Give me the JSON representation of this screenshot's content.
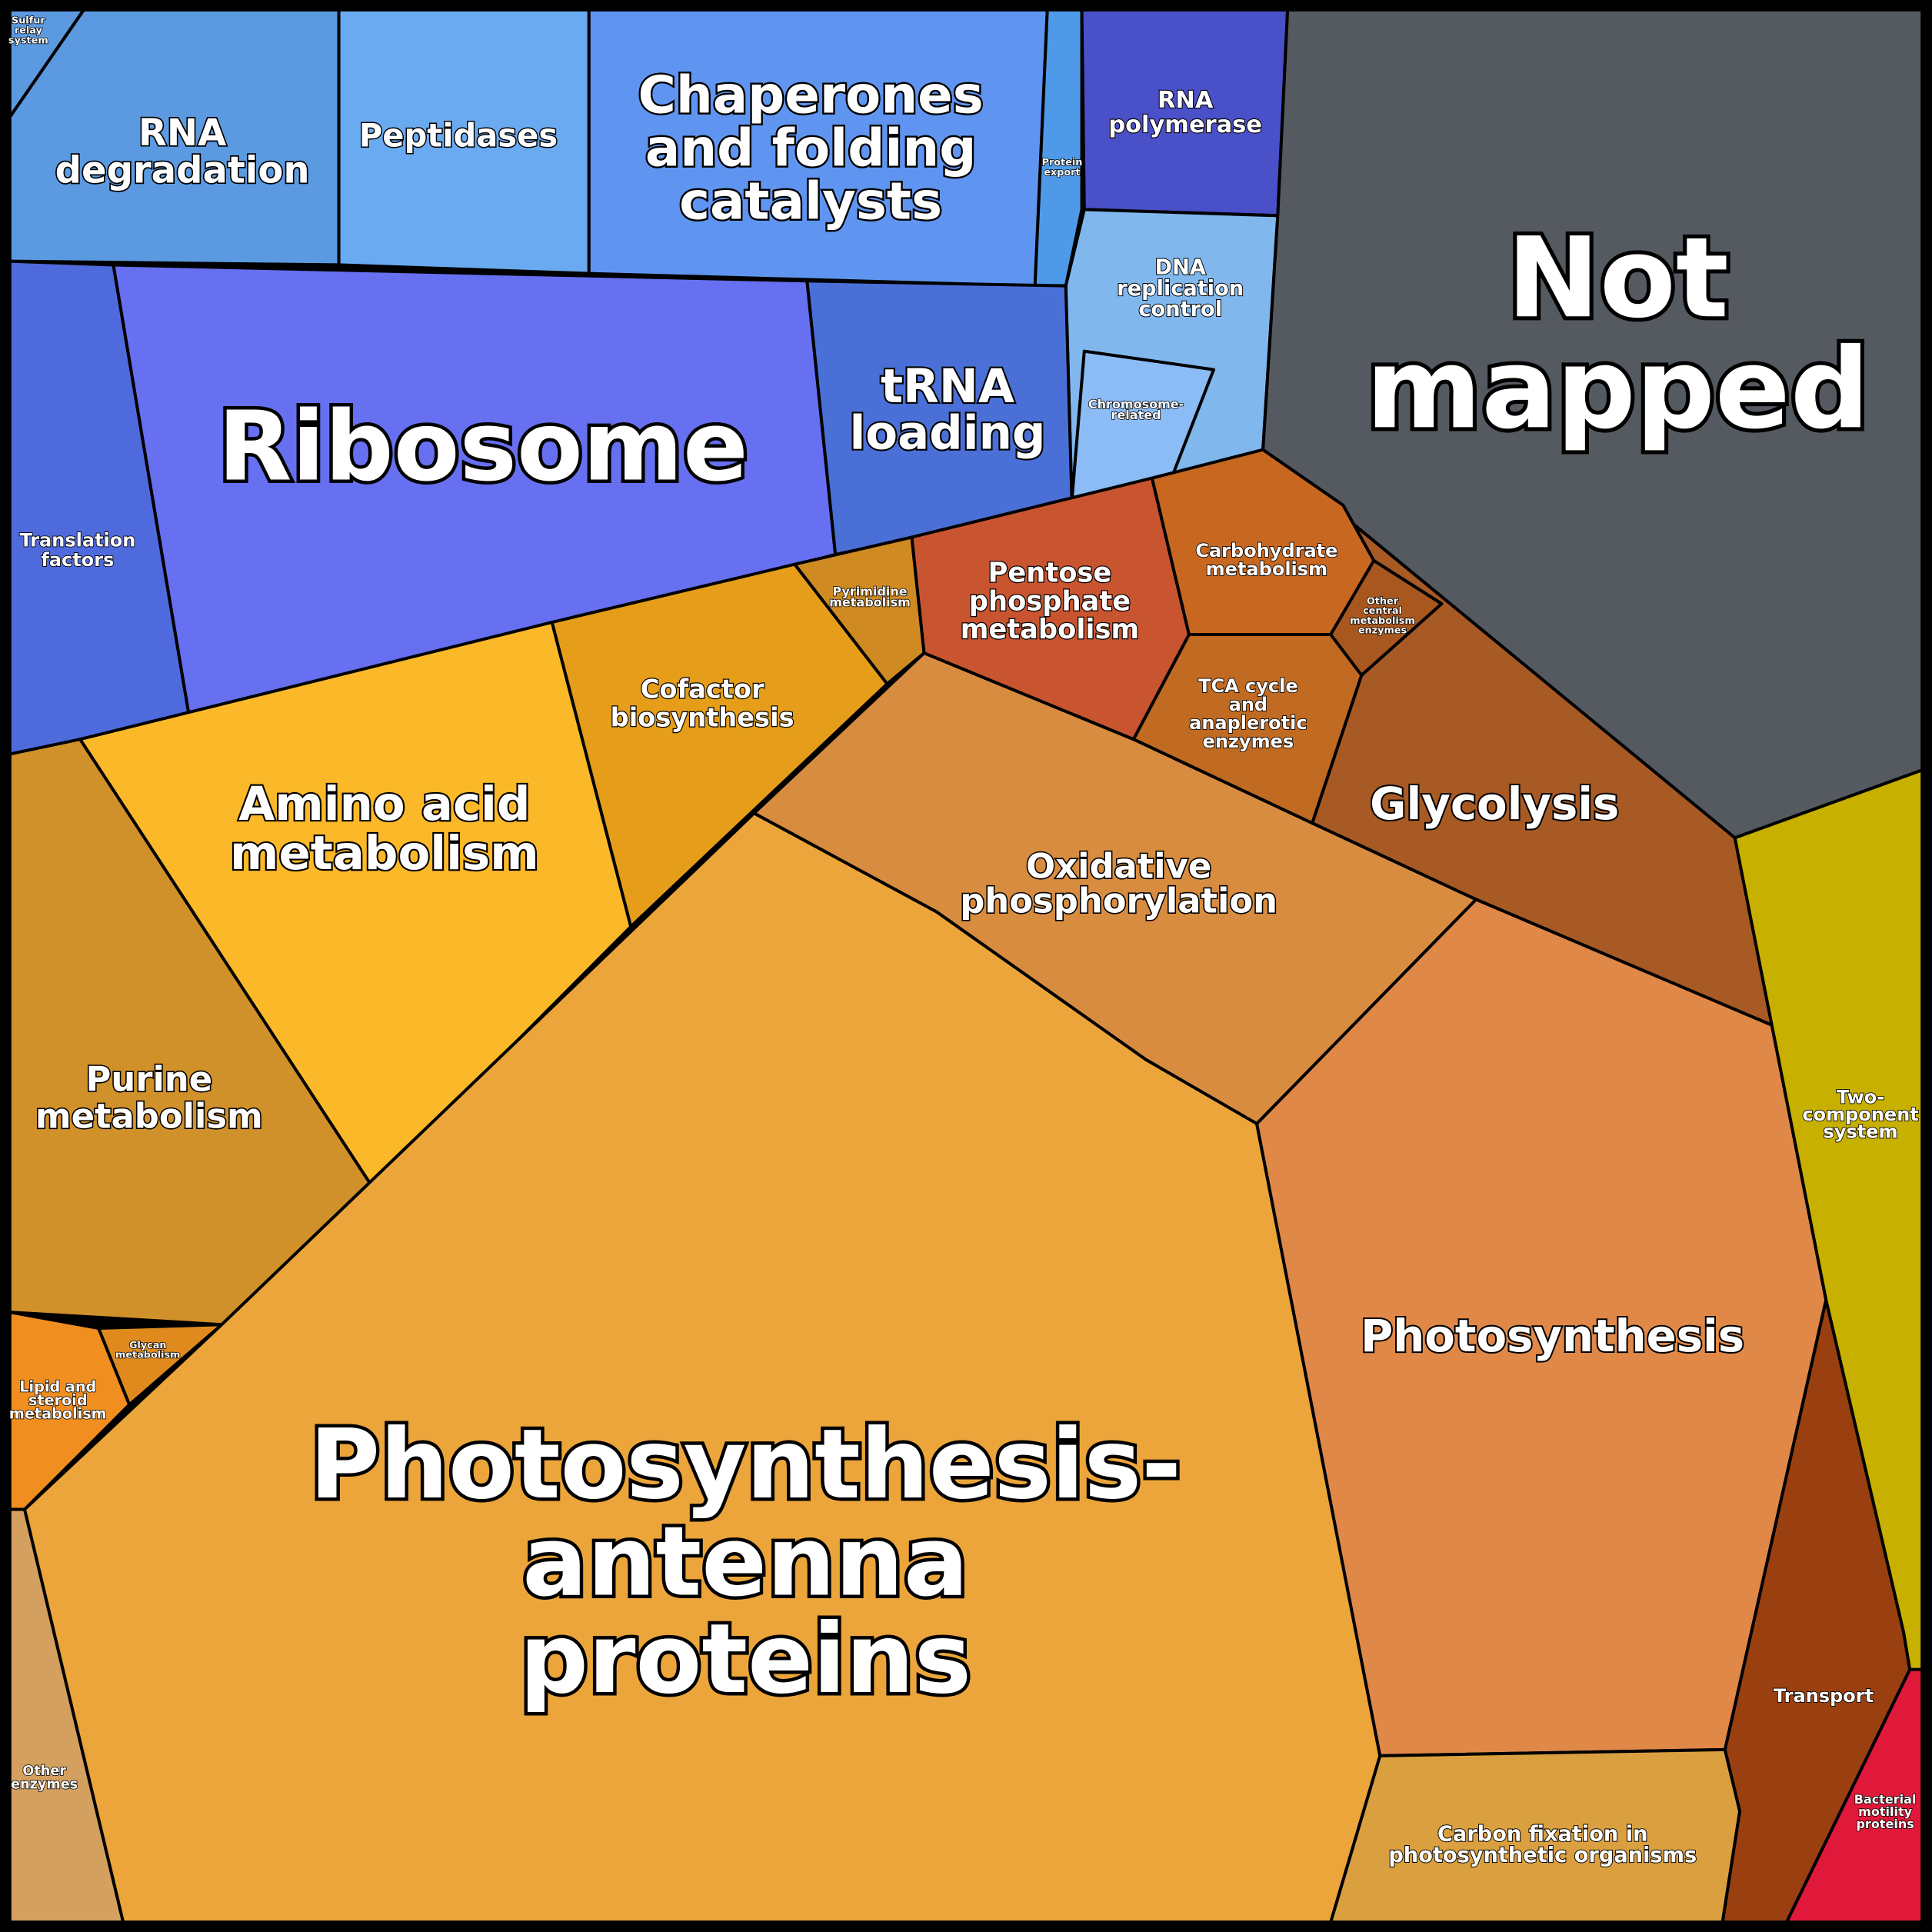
{
  "regions": [
    {
      "lines": [
        "Sulfur",
        "relay",
        "system"
      ]
    },
    {
      "lines": [
        "RNA",
        "degradation"
      ]
    },
    {
      "lines": [
        "Peptidases"
      ]
    },
    {
      "lines": [
        "Chaperones",
        "and folding",
        "catalysts"
      ]
    },
    {
      "lines": [
        "Protein",
        "export"
      ]
    },
    {
      "lines": [
        "RNA",
        "polymerase"
      ]
    },
    {
      "lines": [
        "DNA",
        "replication",
        "control"
      ]
    },
    {
      "lines": [
        "Chromosome-",
        "related"
      ]
    },
    {
      "lines": [
        "Not",
        "mapped"
      ]
    },
    {
      "lines": [
        "Translation",
        "factors"
      ]
    },
    {
      "lines": [
        "Ribosome"
      ]
    },
    {
      "lines": [
        "tRNA",
        "loading"
      ]
    },
    {
      "lines": [
        "Pyrimidine",
        "metabolism"
      ]
    },
    {
      "lines": [
        "Pentose",
        "phosphate",
        "metabolism"
      ]
    },
    {
      "lines": [
        "Carbohydrate",
        "metabolism"
      ]
    },
    {
      "lines": [
        "Other",
        "central",
        "metabolism",
        "enzymes"
      ]
    },
    {
      "lines": [
        "TCA cycle",
        "and",
        "anaplerotic",
        "enzymes"
      ]
    },
    {
      "lines": [
        "Glycolysis"
      ]
    },
    {
      "lines": [
        "Cofactor",
        "biosynthesis"
      ]
    },
    {
      "lines": [
        "Amino acid",
        "metabolism"
      ]
    },
    {
      "lines": [
        "Oxidative",
        "phosphorylation"
      ]
    },
    {
      "lines": [
        "Purine",
        "metabolism"
      ]
    },
    {
      "lines": [
        "Glycan",
        "metabolism"
      ]
    },
    {
      "lines": [
        "Lipid and",
        "steroid",
        "metabolism"
      ]
    },
    {
      "lines": [
        "Photosynthesis-",
        "antenna",
        "proteins"
      ]
    },
    {
      "lines": [
        "Photosynthesis"
      ]
    },
    {
      "lines": [
        "Two-",
        "component",
        "system"
      ]
    },
    {
      "lines": [
        "Transport"
      ]
    },
    {
      "lines": [
        "Other",
        "enzymes"
      ]
    },
    {
      "lines": [
        "Carbon fixation in",
        "photosynthetic organisms"
      ]
    },
    {
      "lines": [
        "Bacterial",
        "motility",
        "proteins"
      ]
    }
  ]
}
